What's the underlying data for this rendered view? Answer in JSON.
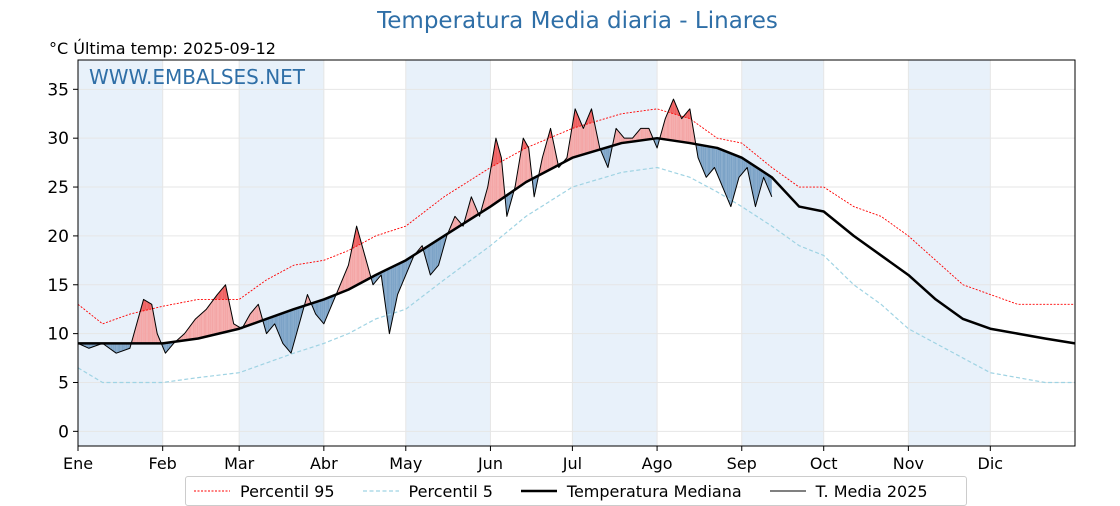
{
  "title": "Temperatura Media diaria - Linares",
  "subtitle": "°C   Última temp: 2025-09-12",
  "watermark": "WWW.EMBALSES.NET",
  "legend": {
    "p95": "Percentil 95",
    "p5": "Percentil 5",
    "median": "Temperatura Mediana",
    "year": "T. Media 2025"
  },
  "colors": {
    "p95": "#ff0000",
    "p5": "#9fd3e3",
    "median": "#000000",
    "above_fill": "#f4a6a6",
    "above_strong": "#ef6060",
    "below_fill": "#7ca3c7",
    "title": "#2f6fa7",
    "month_shade": "#e8f1fa"
  },
  "chart_data": {
    "type": "line",
    "title": "Temperatura Media diaria - Linares",
    "ylabel": "°C",
    "xlim": [
      1,
      366
    ],
    "ylim": [
      -1.5,
      38
    ],
    "yticks": [
      0,
      5,
      10,
      15,
      20,
      25,
      30,
      35
    ],
    "x_tick_labels": [
      "Ene",
      "Feb",
      "Mar",
      "Abr",
      "May",
      "Jun",
      "Jul",
      "Ago",
      "Sep",
      "Oct",
      "Nov",
      "Dic"
    ],
    "x_tick_days": [
      1,
      32,
      60,
      91,
      121,
      152,
      182,
      213,
      244,
      274,
      305,
      335
    ],
    "grid": true,
    "legend_position": "bottom",
    "series": [
      {
        "name": "Percentil 95",
        "style": "dotted-red",
        "points": [
          [
            1,
            13
          ],
          [
            10,
            11
          ],
          [
            20,
            12
          ],
          [
            32,
            12.8
          ],
          [
            45,
            13.5
          ],
          [
            60,
            13.5
          ],
          [
            70,
            15.5
          ],
          [
            80,
            17
          ],
          [
            91,
            17.5
          ],
          [
            100,
            18.5
          ],
          [
            110,
            20
          ],
          [
            121,
            21
          ],
          [
            135,
            24
          ],
          [
            152,
            27
          ],
          [
            165,
            29
          ],
          [
            182,
            31
          ],
          [
            200,
            32.5
          ],
          [
            213,
            33
          ],
          [
            225,
            32
          ],
          [
            235,
            30
          ],
          [
            244,
            29.5
          ],
          [
            255,
            27
          ],
          [
            265,
            25
          ],
          [
            274,
            25
          ],
          [
            285,
            23
          ],
          [
            295,
            22
          ],
          [
            305,
            20
          ],
          [
            315,
            17.5
          ],
          [
            325,
            15
          ],
          [
            335,
            14
          ],
          [
            345,
            13
          ],
          [
            355,
            13
          ],
          [
            366,
            13
          ]
        ]
      },
      {
        "name": "Percentil 5",
        "style": "dashed-lightblue",
        "points": [
          [
            1,
            6.5
          ],
          [
            10,
            5
          ],
          [
            20,
            5
          ],
          [
            32,
            5
          ],
          [
            45,
            5.5
          ],
          [
            60,
            6
          ],
          [
            70,
            7
          ],
          [
            80,
            8
          ],
          [
            91,
            9
          ],
          [
            100,
            10
          ],
          [
            110,
            11.5
          ],
          [
            121,
            12.5
          ],
          [
            135,
            15.5
          ],
          [
            152,
            19
          ],
          [
            165,
            22
          ],
          [
            182,
            25
          ],
          [
            200,
            26.5
          ],
          [
            213,
            27
          ],
          [
            225,
            26
          ],
          [
            235,
            24.5
          ],
          [
            244,
            23
          ],
          [
            255,
            21
          ],
          [
            265,
            19
          ],
          [
            274,
            18
          ],
          [
            285,
            15
          ],
          [
            295,
            13
          ],
          [
            305,
            10.5
          ],
          [
            315,
            9
          ],
          [
            325,
            7.5
          ],
          [
            335,
            6
          ],
          [
            345,
            5.5
          ],
          [
            355,
            5
          ],
          [
            366,
            5
          ]
        ]
      },
      {
        "name": "Temperatura Mediana",
        "style": "solid-thick-black",
        "points": [
          [
            1,
            9
          ],
          [
            10,
            9
          ],
          [
            20,
            9
          ],
          [
            32,
            9
          ],
          [
            45,
            9.5
          ],
          [
            60,
            10.5
          ],
          [
            70,
            11.5
          ],
          [
            80,
            12.5
          ],
          [
            91,
            13.5
          ],
          [
            100,
            14.5
          ],
          [
            110,
            16
          ],
          [
            121,
            17.5
          ],
          [
            135,
            20
          ],
          [
            152,
            23
          ],
          [
            165,
            25.5
          ],
          [
            182,
            28
          ],
          [
            200,
            29.5
          ],
          [
            213,
            30
          ],
          [
            225,
            29.5
          ],
          [
            235,
            29
          ],
          [
            244,
            28
          ],
          [
            255,
            26
          ],
          [
            265,
            23
          ],
          [
            274,
            22.5
          ],
          [
            285,
            20
          ],
          [
            295,
            18
          ],
          [
            305,
            16
          ],
          [
            315,
            13.5
          ],
          [
            325,
            11.5
          ],
          [
            335,
            10.5
          ],
          [
            345,
            10
          ],
          [
            355,
            9.5
          ],
          [
            366,
            9
          ]
        ]
      },
      {
        "name": "T. Media 2025",
        "style": "solid-thin-black",
        "points": [
          [
            1,
            9
          ],
          [
            5,
            8.5
          ],
          [
            10,
            9
          ],
          [
            15,
            8
          ],
          [
            20,
            8.5
          ],
          [
            25,
            13.5
          ],
          [
            28,
            13
          ],
          [
            30,
            10
          ],
          [
            33,
            8
          ],
          [
            36,
            9
          ],
          [
            40,
            10
          ],
          [
            44,
            11.5
          ],
          [
            48,
            12.5
          ],
          [
            52,
            14
          ],
          [
            55,
            15
          ],
          [
            58,
            11
          ],
          [
            61,
            10.5
          ],
          [
            64,
            12
          ],
          [
            67,
            13
          ],
          [
            70,
            10
          ],
          [
            73,
            11
          ],
          [
            76,
            9
          ],
          [
            79,
            8
          ],
          [
            82,
            11
          ],
          [
            85,
            14
          ],
          [
            88,
            12
          ],
          [
            91,
            11
          ],
          [
            94,
            13
          ],
          [
            97,
            15
          ],
          [
            100,
            17
          ],
          [
            103,
            21
          ],
          [
            106,
            18
          ],
          [
            109,
            15
          ],
          [
            112,
            16
          ],
          [
            115,
            10
          ],
          [
            118,
            14
          ],
          [
            121,
            16
          ],
          [
            124,
            18
          ],
          [
            127,
            19
          ],
          [
            130,
            16
          ],
          [
            133,
            17
          ],
          [
            136,
            20
          ],
          [
            139,
            22
          ],
          [
            142,
            21
          ],
          [
            145,
            24
          ],
          [
            148,
            22
          ],
          [
            151,
            25
          ],
          [
            154,
            30
          ],
          [
            156,
            28
          ],
          [
            158,
            22
          ],
          [
            161,
            25
          ],
          [
            164,
            30
          ],
          [
            166,
            29
          ],
          [
            168,
            24
          ],
          [
            171,
            28
          ],
          [
            174,
            31
          ],
          [
            177,
            27
          ],
          [
            180,
            28
          ],
          [
            183,
            33
          ],
          [
            186,
            31
          ],
          [
            189,
            33
          ],
          [
            192,
            29
          ],
          [
            195,
            27
          ],
          [
            198,
            31
          ],
          [
            201,
            30
          ],
          [
            204,
            30
          ],
          [
            207,
            31
          ],
          [
            210,
            31
          ],
          [
            213,
            29
          ],
          [
            216,
            32
          ],
          [
            219,
            34
          ],
          [
            222,
            32
          ],
          [
            225,
            33
          ],
          [
            228,
            28
          ],
          [
            231,
            26
          ],
          [
            234,
            27
          ],
          [
            237,
            25
          ],
          [
            240,
            23
          ],
          [
            243,
            26
          ],
          [
            246,
            27
          ],
          [
            249,
            23
          ],
          [
            252,
            26
          ],
          [
            255,
            24
          ]
        ]
      }
    ]
  }
}
